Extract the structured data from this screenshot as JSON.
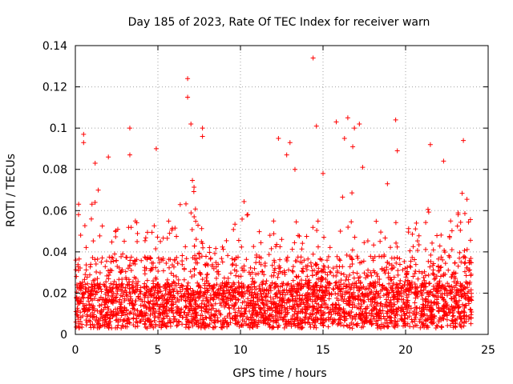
{
  "chart_data": {
    "type": "scatter",
    "title": "Day 185 of 2023, Rate Of TEC Index for receiver warn",
    "xlabel": "GPS time / hours",
    "ylabel": "ROTI / TECUs",
    "xlim": [
      0,
      25
    ],
    "ylim": [
      0,
      0.14
    ],
    "x_ticks": [
      "0",
      "5",
      "10",
      "15",
      "20",
      "25"
    ],
    "y_ticks": [
      "0",
      "0.02",
      "0.04",
      "0.06",
      "0.08",
      "0.1",
      "0.12",
      "0.14"
    ],
    "grid": true,
    "marker": "+",
    "color": "#ff0000",
    "outliers": [
      {
        "x": 6.8,
        "y": 0.124
      },
      {
        "x": 6.8,
        "y": 0.115
      },
      {
        "x": 14.4,
        "y": 0.134
      },
      {
        "x": 19.4,
        "y": 0.104
      },
      {
        "x": 16.5,
        "y": 0.105
      },
      {
        "x": 3.3,
        "y": 0.1
      },
      {
        "x": 0.5,
        "y": 0.097
      },
      {
        "x": 0.5,
        "y": 0.093
      },
      {
        "x": 7.7,
        "y": 0.1
      },
      {
        "x": 7.7,
        "y": 0.096
      },
      {
        "x": 14.6,
        "y": 0.101
      },
      {
        "x": 15.8,
        "y": 0.103
      },
      {
        "x": 17.2,
        "y": 0.102
      },
      {
        "x": 16.9,
        "y": 0.1
      },
      {
        "x": 23.5,
        "y": 0.094
      },
      {
        "x": 21.5,
        "y": 0.092
      },
      {
        "x": 12.3,
        "y": 0.095
      },
      {
        "x": 4.9,
        "y": 0.09
      },
      {
        "x": 7.0,
        "y": 0.102
      },
      {
        "x": 19.5,
        "y": 0.089
      },
      {
        "x": 16.3,
        "y": 0.095
      },
      {
        "x": 16.8,
        "y": 0.091
      },
      {
        "x": 13.0,
        "y": 0.093
      },
      {
        "x": 18.9,
        "y": 0.073
      },
      {
        "x": 1.2,
        "y": 0.083
      },
      {
        "x": 2.0,
        "y": 0.086
      },
      {
        "x": 3.3,
        "y": 0.087
      },
      {
        "x": 12.8,
        "y": 0.087
      },
      {
        "x": 13.3,
        "y": 0.08
      },
      {
        "x": 15.0,
        "y": 0.078
      },
      {
        "x": 17.4,
        "y": 0.081
      },
      {
        "x": 22.3,
        "y": 0.084
      }
    ]
  }
}
